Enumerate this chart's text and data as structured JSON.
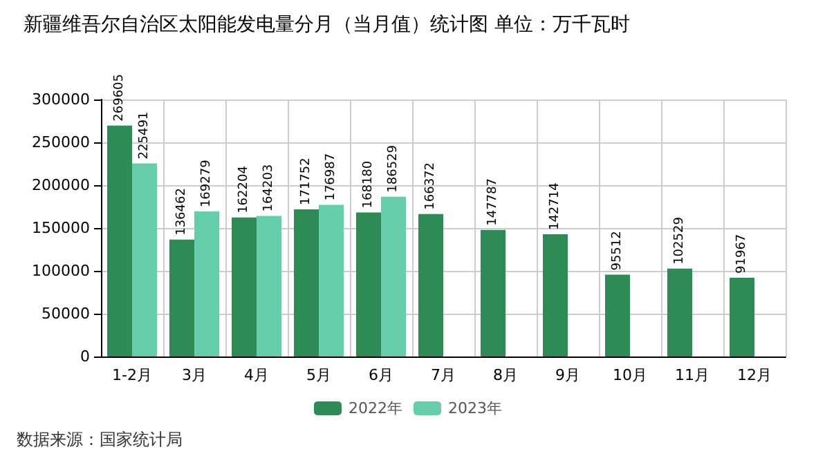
{
  "chart_data": {
    "type": "bar",
    "title": "新疆维吾尔自治区太阳能发电量分月（当月值）统计图 单位：万千瓦时",
    "categories": [
      "1-2月",
      "3月",
      "4月",
      "5月",
      "6月",
      "7月",
      "8月",
      "9月",
      "10月",
      "11月",
      "12月"
    ],
    "series": [
      {
        "name": "2022年",
        "color": "#2e8b57",
        "values": [
          269605,
          136462,
          162204,
          171752,
          168180,
          166372,
          147787,
          142714,
          95512,
          102529,
          91967
        ]
      },
      {
        "name": "2023年",
        "color": "#66cdaa",
        "values": [
          225491,
          169279,
          164203,
          176987,
          186529,
          null,
          null,
          null,
          null,
          null,
          null
        ]
      }
    ],
    "ylim": [
      0,
      300000
    ],
    "yticks": [
      0,
      50000,
      100000,
      150000,
      200000,
      250000,
      300000
    ],
    "grid": true,
    "legend": "bottom",
    "data_labels": true,
    "annotations": [
      "数据来源：国家统计局"
    ]
  }
}
